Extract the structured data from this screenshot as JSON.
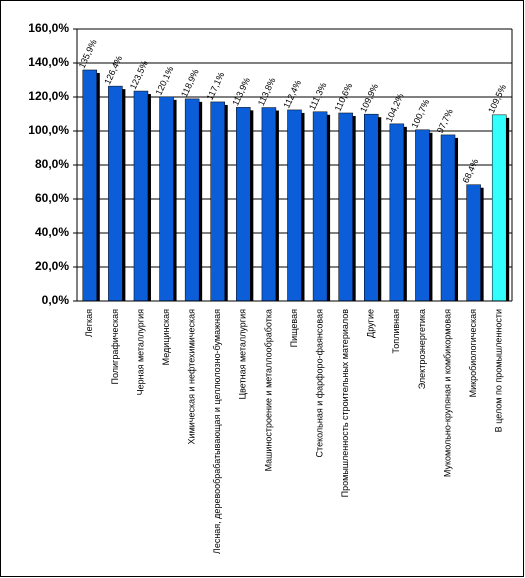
{
  "chart_data": {
    "type": "bar",
    "categories": [
      "Легкая",
      "Полиграфическая",
      "Черная металлургия",
      "Медицинская",
      "Химическая и нефтехимическая",
      "Лесная, деревообрабатывающая и целлюлозно-бумажная",
      "Цветная металлургия",
      "Машиностроение и металлообработка",
      "Пищевая",
      "Стекольная и фарфоро-фаянсовая",
      "Промышленность строительных материалов",
      "Другие",
      "Топливная",
      "Электроэнергетика",
      "Мукомольно-крупяная и комбикормовая",
      "Микробиологическая",
      "В целом по промышленности"
    ],
    "values": [
      135.9,
      126.4,
      123.5,
      120.1,
      118.9,
      117.1,
      113.9,
      113.8,
      112.4,
      111.3,
      110.6,
      109.9,
      104.2,
      100.7,
      97.7,
      68.4,
      109.5
    ],
    "value_labels": [
      "135,9%",
      "126,4%",
      "123,5%",
      "120,1%",
      "118,9%",
      "117,1%",
      "113,9%",
      "113,8%",
      "112,4%",
      "111,3%",
      "110,6%",
      "109,9%",
      "104,2%",
      "100,7%",
      "97,7%",
      "68,4%",
      "109,5%"
    ],
    "colors": [
      "#0b5ed7",
      "#0b5ed7",
      "#0b5ed7",
      "#0b5ed7",
      "#0b5ed7",
      "#0b5ed7",
      "#0b5ed7",
      "#0b5ed7",
      "#0b5ed7",
      "#0b5ed7",
      "#0b5ed7",
      "#0b5ed7",
      "#0b5ed7",
      "#0b5ed7",
      "#0b5ed7",
      "#0b5ed7",
      "#33ffff"
    ],
    "ylim": [
      0,
      160
    ],
    "yticks": [
      {
        "value": 0,
        "label": "0,0%"
      },
      {
        "value": 20,
        "label": "20,0%"
      },
      {
        "value": 40,
        "label": "40,0%"
      },
      {
        "value": 60,
        "label": "60,0%"
      },
      {
        "value": 80,
        "label": "80,0%"
      },
      {
        "value": 100,
        "label": "100,0%"
      },
      {
        "value": 120,
        "label": "120,0%"
      },
      {
        "value": 140,
        "label": "140,0%"
      },
      {
        "value": 160,
        "label": "160,0%"
      }
    ],
    "grid": true
  }
}
